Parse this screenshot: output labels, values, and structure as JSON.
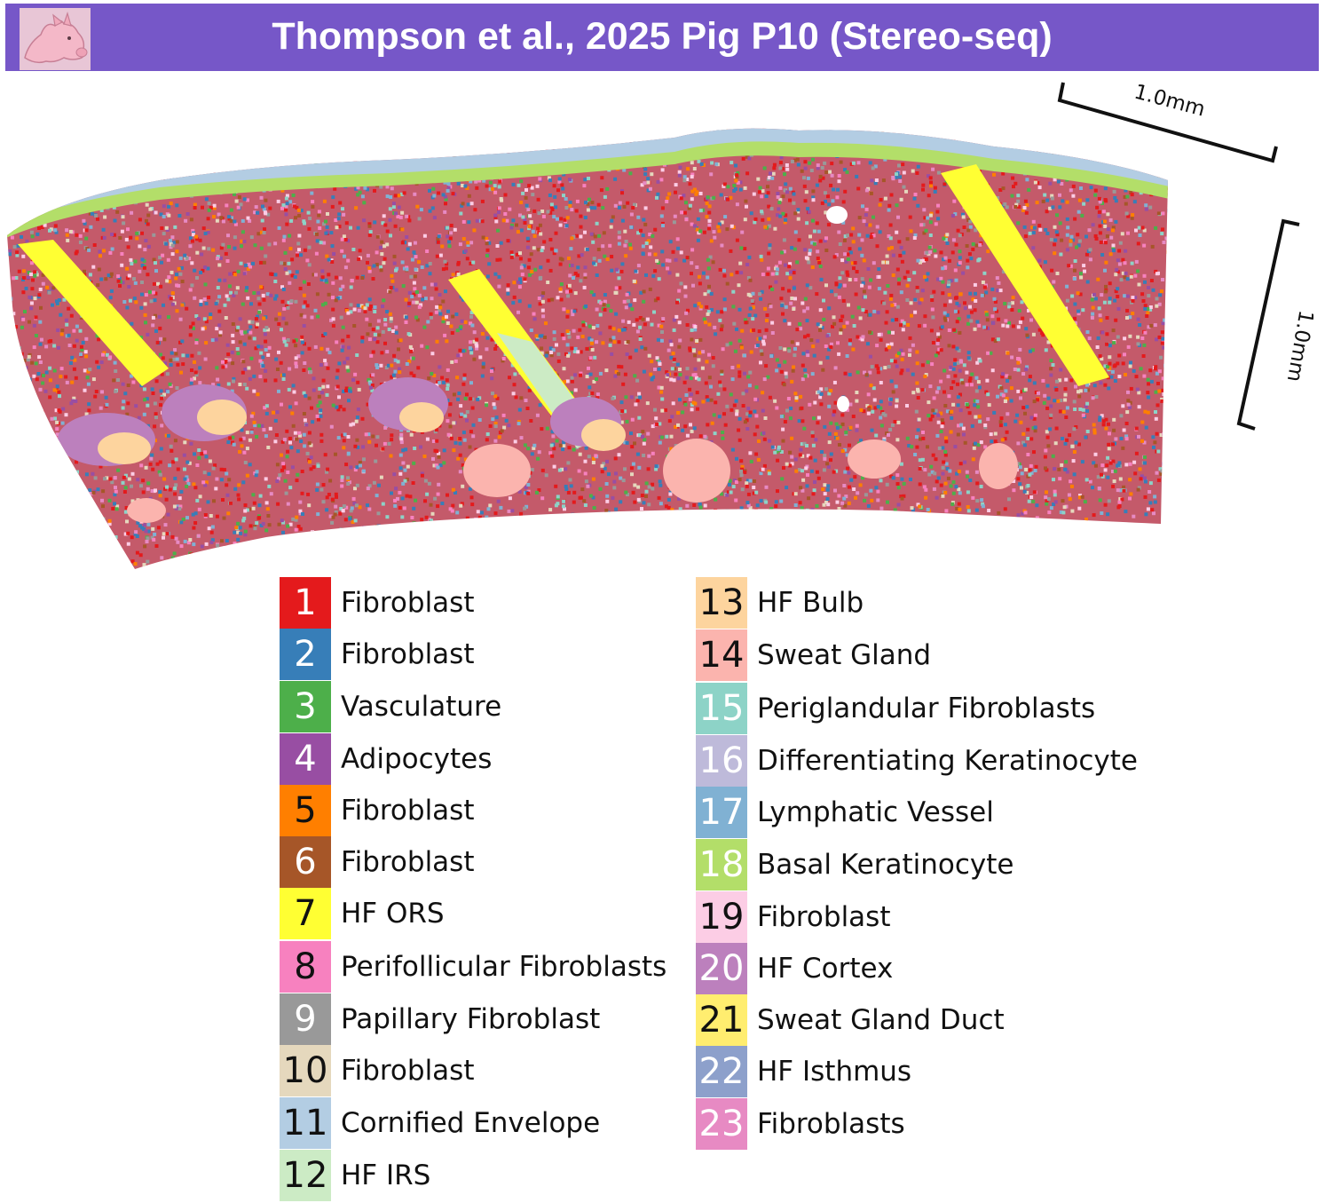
{
  "header": {
    "title": "Thompson et al., 2025 Pig P10 (Stereo-seq)",
    "banner_color": "#7657c8",
    "icon": "pig-icon"
  },
  "scale_bars": {
    "horizontal_label": "1.0mm",
    "vertical_label": "1.0mm"
  },
  "legend": [
    {
      "id": "1",
      "label": "Fibroblast",
      "color": "#e41a1c",
      "text_color": "#ffffff"
    },
    {
      "id": "2",
      "label": "Fibroblast",
      "color": "#377eb8",
      "text_color": "#ffffff"
    },
    {
      "id": "3",
      "label": "Vasculature",
      "color": "#4daf4a",
      "text_color": "#ffffff"
    },
    {
      "id": "4",
      "label": "Adipocytes",
      "color": "#984ea3",
      "text_color": "#ffffff"
    },
    {
      "id": "5",
      "label": "Fibroblast",
      "color": "#ff7f00",
      "text_color": "#111111"
    },
    {
      "id": "6",
      "label": "Fibroblast",
      "color": "#a65628",
      "text_color": "#ffffff"
    },
    {
      "id": "7",
      "label": "HF ORS",
      "color": "#ffff33",
      "text_color": "#111111"
    },
    {
      "id": "8",
      "label": "Perifollicular Fibroblasts",
      "color": "#f781bf",
      "text_color": "#111111"
    },
    {
      "id": "9",
      "label": "Papillary Fibroblast",
      "color": "#999999",
      "text_color": "#ffffff"
    },
    {
      "id": "10",
      "label": "Fibroblast",
      "color": "#e5d8bd",
      "text_color": "#111111"
    },
    {
      "id": "11",
      "label": "Cornified Envelope",
      "color": "#b3cde3",
      "text_color": "#111111"
    },
    {
      "id": "12",
      "label": "HF IRS",
      "color": "#ccebc5",
      "text_color": "#111111"
    },
    {
      "id": "13",
      "label": "HF Bulb",
      "color": "#fdd49e",
      "text_color": "#111111"
    },
    {
      "id": "14",
      "label": "Sweat Gland",
      "color": "#fbb4ae",
      "text_color": "#111111"
    },
    {
      "id": "15",
      "label": "Periglandular Fibroblasts",
      "color": "#8dd3c7",
      "text_color": "#ffffff"
    },
    {
      "id": "16",
      "label": "Differentiating Keratinocyte",
      "color": "#bebada",
      "text_color": "#ffffff"
    },
    {
      "id": "17",
      "label": "Lymphatic Vessel",
      "color": "#80b1d3",
      "text_color": "#ffffff"
    },
    {
      "id": "18",
      "label": "Basal Keratinocyte",
      "color": "#b3de69",
      "text_color": "#ffffff"
    },
    {
      "id": "19",
      "label": "Fibroblast",
      "color": "#fccde5",
      "text_color": "#111111"
    },
    {
      "id": "20",
      "label": "HF Cortex",
      "color": "#bc80bd",
      "text_color": "#ffffff"
    },
    {
      "id": "21",
      "label": "Sweat Gland Duct",
      "color": "#ffed6f",
      "text_color": "#111111"
    },
    {
      "id": "22",
      "label": "HF Isthmus",
      "color": "#8da0cb",
      "text_color": "#ffffff"
    },
    {
      "id": "23",
      "label": "Fibroblasts",
      "color": "#e78ac3",
      "text_color": "#ffffff"
    }
  ]
}
